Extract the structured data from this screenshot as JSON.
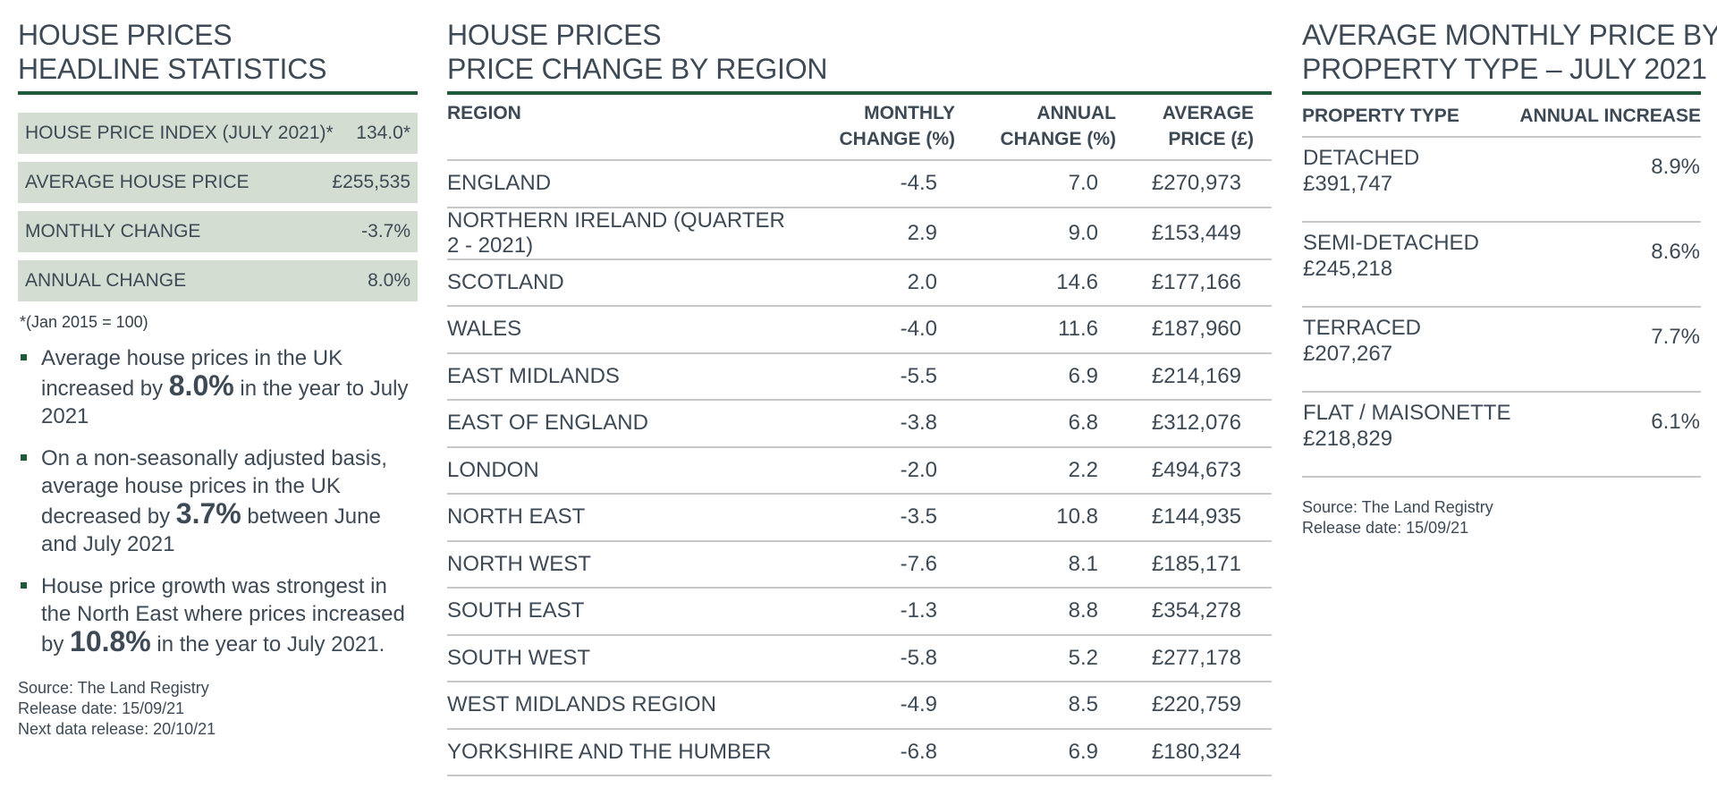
{
  "left": {
    "title_lines": [
      "HOUSE PRICES",
      "HEADLINE STATISTICS"
    ],
    "stats": [
      {
        "label": "HOUSE PRICE INDEX (JULY 2021)*",
        "value": "134.0*"
      },
      {
        "label": "AVERAGE HOUSE PRICE",
        "value": "£255,535"
      },
      {
        "label": "MONTHLY CHANGE",
        "value": "-3.7%"
      },
      {
        "label": "ANNUAL CHANGE",
        "value": "8.0%"
      }
    ],
    "footnote": "*(Jan 2015 = 100)",
    "bullets": [
      {
        "pre": "Average house prices in the UK increased by ",
        "big": "8.0%",
        "post": " in the year to July 2021"
      },
      {
        "pre": "On a non-seasonally adjusted basis, average house prices in the UK decreased by ",
        "big": "3.7%",
        "post": " between June and July 2021"
      },
      {
        "pre": "House price growth was strongest in the North East where prices increased by ",
        "big": "10.8%",
        "post": " in the year to July 2021."
      }
    ],
    "source_lines": [
      "Source: The Land Registry",
      "Release date: 15/09/21",
      "Next data release: 20/10/21"
    ]
  },
  "mid": {
    "title_lines": [
      "HOUSE PRICES",
      "PRICE CHANGE BY REGION"
    ],
    "headers": {
      "region": "REGION",
      "monthly": [
        "MONTHLY",
        "CHANGE (%)"
      ],
      "annual": [
        "ANNUAL",
        "CHANGE (%)"
      ],
      "average": [
        "AVERAGE",
        "PRICE (£)"
      ]
    },
    "rows": [
      {
        "region": "ENGLAND",
        "monthly": "-4.5",
        "annual": "7.0",
        "price": "£270,973"
      },
      {
        "region": "NORTHERN IRELAND (QUARTER 2 - 2021)",
        "monthly": "2.9",
        "annual": "9.0",
        "price": "£153,449"
      },
      {
        "region": "SCOTLAND",
        "monthly": "2.0",
        "annual": "14.6",
        "price": "£177,166"
      },
      {
        "region": "WALES",
        "monthly": "-4.0",
        "annual": "11.6",
        "price": "£187,960"
      },
      {
        "region": "EAST MIDLANDS",
        "monthly": "-5.5",
        "annual": "6.9",
        "price": "£214,169"
      },
      {
        "region": "EAST OF ENGLAND",
        "monthly": "-3.8",
        "annual": "6.8",
        "price": "£312,076"
      },
      {
        "region": "LONDON",
        "monthly": "-2.0",
        "annual": "2.2",
        "price": "£494,673"
      },
      {
        "region": "NORTH EAST",
        "monthly": "-3.5",
        "annual": "10.8",
        "price": "£144,935"
      },
      {
        "region": "NORTH WEST",
        "monthly": "-7.6",
        "annual": "8.1",
        "price": "£185,171"
      },
      {
        "region": "SOUTH EAST",
        "monthly": "-1.3",
        "annual": "8.8",
        "price": "£354,278"
      },
      {
        "region": "SOUTH WEST",
        "monthly": "-5.8",
        "annual": "5.2",
        "price": "£277,178"
      },
      {
        "region": "WEST MIDLANDS REGION",
        "monthly": "-4.9",
        "annual": "8.5",
        "price": "£220,759"
      },
      {
        "region": "YORKSHIRE AND THE HUMBER",
        "monthly": "-6.8",
        "annual": "6.9",
        "price": "£180,324"
      }
    ]
  },
  "right": {
    "title_lines": [
      "AVERAGE MONTHLY PRICE BY",
      "PROPERTY TYPE – JULY 2021"
    ],
    "headers": {
      "type": "PROPERTY TYPE",
      "increase": "ANNUAL INCREASE"
    },
    "rows": [
      {
        "type": "DETACHED",
        "price": "£391,747",
        "increase": "8.9%"
      },
      {
        "type": "SEMI-DETACHED",
        "price": "£245,218",
        "increase": "8.6%"
      },
      {
        "type": "TERRACED",
        "price": "£207,267",
        "increase": "7.7%"
      },
      {
        "type": "FLAT / MAISONETTE",
        "price": "£218,829",
        "increase": "6.1%"
      }
    ],
    "source_lines": [
      "Source: The Land Registry",
      "Release date: 15/09/21"
    ]
  },
  "colors": {
    "accent": "#1f5a3a",
    "stat_bg": "#d3ddd2",
    "negative": "#c0262d",
    "text": "#3d4a55"
  }
}
